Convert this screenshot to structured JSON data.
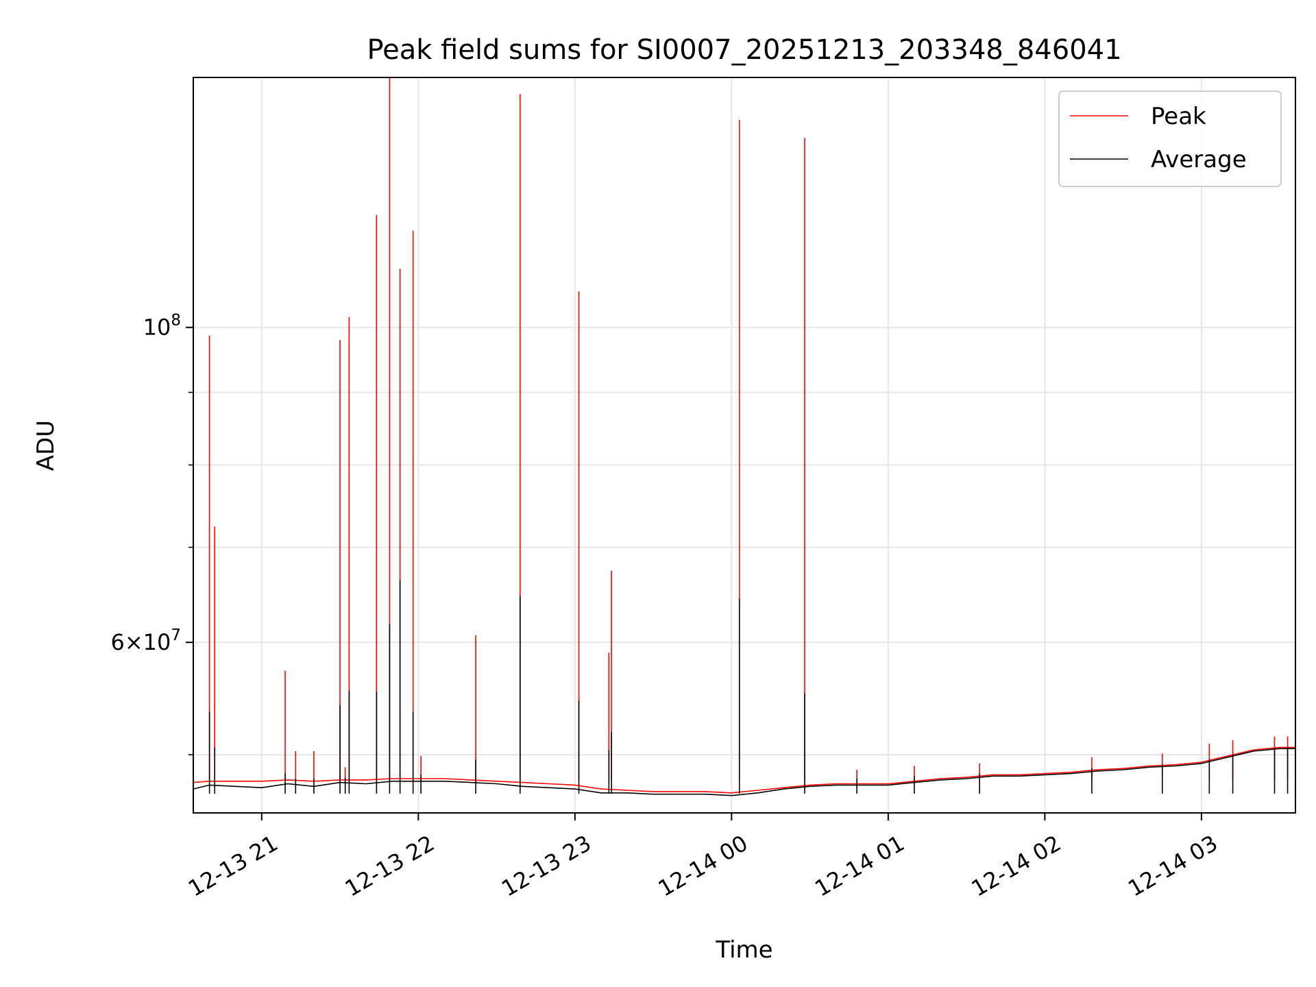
{
  "chart_data": {
    "type": "line",
    "title": "Peak field sums for SI0007_20251213_203348_846041",
    "xlabel": "Time",
    "ylabel": "ADU",
    "y_scale": "log",
    "ylim": [
      45500000,
      150000000
    ],
    "xlim": [
      "2025-12-13T20:33:48",
      "2025-12-14T03:36:00"
    ],
    "grid": true,
    "legend_position": "top-right",
    "x_ticks": [
      {
        "value": "2025-12-13T21:00:00",
        "label": "12-13 21"
      },
      {
        "value": "2025-12-13T22:00:00",
        "label": "12-13 22"
      },
      {
        "value": "2025-12-13T23:00:00",
        "label": "12-13 23"
      },
      {
        "value": "2025-12-14T00:00:00",
        "label": "12-14 00"
      },
      {
        "value": "2025-12-14T01:00:00",
        "label": "12-14 01"
      },
      {
        "value": "2025-12-14T02:00:00",
        "label": "12-14 02"
      },
      {
        "value": "2025-12-14T03:00:00",
        "label": "12-14 03"
      }
    ],
    "y_ticks": [
      {
        "value": 100000000,
        "base": "10",
        "exp": "8",
        "mant": ""
      },
      {
        "value": 60000000,
        "base": "10",
        "exp": "7",
        "mant": "6×"
      }
    ],
    "series": [
      {
        "name": "Peak",
        "color": "#ff0000",
        "x": [
          "2025-12-13T20:33:48",
          "2025-12-13T20:40:00",
          "2025-12-13T20:50:00",
          "2025-12-13T21:00:00",
          "2025-12-13T21:10:00",
          "2025-12-13T21:20:00",
          "2025-12-13T21:30:00",
          "2025-12-13T21:40:00",
          "2025-12-13T21:50:00",
          "2025-12-13T22:00:00",
          "2025-12-13T22:10:00",
          "2025-12-13T22:20:00",
          "2025-12-13T22:30:00",
          "2025-12-13T22:40:00",
          "2025-12-13T22:50:00",
          "2025-12-13T23:00:00",
          "2025-12-13T23:10:00",
          "2025-12-13T23:20:00",
          "2025-12-13T23:30:00",
          "2025-12-13T23:40:00",
          "2025-12-13T23:50:00",
          "2025-12-14T00:00:00",
          "2025-12-14T00:10:00",
          "2025-12-14T00:20:00",
          "2025-12-14T00:30:00",
          "2025-12-14T00:40:00",
          "2025-12-14T00:50:00",
          "2025-12-14T01:00:00",
          "2025-12-14T01:10:00",
          "2025-12-14T01:20:00",
          "2025-12-14T01:30:00",
          "2025-12-14T01:40:00",
          "2025-12-14T01:50:00",
          "2025-12-14T02:00:00",
          "2025-12-14T02:10:00",
          "2025-12-14T02:20:00",
          "2025-12-14T02:30:00",
          "2025-12-14T02:40:00",
          "2025-12-14T02:50:00",
          "2025-12-14T03:00:00",
          "2025-12-14T03:10:00",
          "2025-12-14T03:20:00",
          "2025-12-14T03:30:00",
          "2025-12-14T03:36:00"
        ],
        "values": [
          47800000,
          47900000,
          47900000,
          47900000,
          48000000,
          47900000,
          48000000,
          48000000,
          48100000,
          48100000,
          48100000,
          48000000,
          47900000,
          47800000,
          47700000,
          47600000,
          47300000,
          47200000,
          47100000,
          47100000,
          47100000,
          47000000,
          47200000,
          47400000,
          47600000,
          47700000,
          47700000,
          47700000,
          47900000,
          48100000,
          48200000,
          48400000,
          48400000,
          48500000,
          48600000,
          48800000,
          48900000,
          49100000,
          49200000,
          49400000,
          49900000,
          50400000,
          50600000,
          50600000
        ]
      },
      {
        "name": "Average",
        "color": "#000000",
        "x": [
          "2025-12-13T20:33:48",
          "2025-12-13T20:40:00",
          "2025-12-13T20:50:00",
          "2025-12-13T21:00:00",
          "2025-12-13T21:10:00",
          "2025-12-13T21:20:00",
          "2025-12-13T21:30:00",
          "2025-12-13T21:40:00",
          "2025-12-13T21:50:00",
          "2025-12-13T22:00:00",
          "2025-12-13T22:10:00",
          "2025-12-13T22:20:00",
          "2025-12-13T22:30:00",
          "2025-12-13T22:40:00",
          "2025-12-13T22:50:00",
          "2025-12-13T23:00:00",
          "2025-12-13T23:10:00",
          "2025-12-13T23:20:00",
          "2025-12-13T23:30:00",
          "2025-12-13T23:40:00",
          "2025-12-13T23:50:00",
          "2025-12-14T00:00:00",
          "2025-12-14T00:10:00",
          "2025-12-14T00:20:00",
          "2025-12-14T00:30:00",
          "2025-12-14T00:40:00",
          "2025-12-14T00:50:00",
          "2025-12-14T01:00:00",
          "2025-12-14T01:10:00",
          "2025-12-14T01:20:00",
          "2025-12-14T01:30:00",
          "2025-12-14T01:40:00",
          "2025-12-14T01:50:00",
          "2025-12-14T02:00:00",
          "2025-12-14T02:10:00",
          "2025-12-14T02:20:00",
          "2025-12-14T02:30:00",
          "2025-12-14T02:40:00",
          "2025-12-14T02:50:00",
          "2025-12-14T03:00:00",
          "2025-12-14T03:10:00",
          "2025-12-14T03:20:00",
          "2025-12-14T03:30:00",
          "2025-12-14T03:36:00"
        ],
        "values": [
          47300000,
          47600000,
          47500000,
          47400000,
          47700000,
          47500000,
          47800000,
          47700000,
          47900000,
          47900000,
          47900000,
          47800000,
          47700000,
          47500000,
          47400000,
          47300000,
          47000000,
          47000000,
          46900000,
          46900000,
          46900000,
          46800000,
          47000000,
          47300000,
          47500000,
          47600000,
          47600000,
          47600000,
          47800000,
          48000000,
          48100000,
          48300000,
          48300000,
          48400000,
          48500000,
          48700000,
          48800000,
          49000000,
          49100000,
          49300000,
          49800000,
          50300000,
          50500000,
          50500000
        ]
      }
    ],
    "spikes": [
      {
        "x": "2025-12-13T20:40:00",
        "peak": 98700000,
        "average": 53600000
      },
      {
        "x": "2025-12-13T20:42:00",
        "peak": 72400000,
        "average": 50600000
      },
      {
        "x": "2025-12-13T21:09:00",
        "peak": 57300000,
        "average": 48500000
      },
      {
        "x": "2025-12-13T21:13:00",
        "peak": 50300000,
        "average": 48100000
      },
      {
        "x": "2025-12-13T21:20:00",
        "peak": 50300000,
        "average": 48100000
      },
      {
        "x": "2025-12-13T21:30:00",
        "peak": 98000000,
        "average": 54200000
      },
      {
        "x": "2025-12-13T21:32:00",
        "peak": 49000000,
        "average": 48200000
      },
      {
        "x": "2025-12-13T21:33:30",
        "peak": 101700000,
        "average": 55500000
      },
      {
        "x": "2025-12-13T21:44:00",
        "peak": 120000000,
        "average": 55400000
      },
      {
        "x": "2025-12-13T21:49:00",
        "peak": 150000000,
        "average": 61800000
      },
      {
        "x": "2025-12-13T21:53:00",
        "peak": 110000000,
        "average": 66400000
      },
      {
        "x": "2025-12-13T21:58:00",
        "peak": 117000000,
        "average": 53600000
      },
      {
        "x": "2025-12-13T22:01:00",
        "peak": 49900000,
        "average": 48400000
      },
      {
        "x": "2025-12-13T22:22:00",
        "peak": 60700000,
        "average": 49600000
      },
      {
        "x": "2025-12-13T22:39:00",
        "peak": 146000000,
        "average": 64700000
      },
      {
        "x": "2025-12-13T23:01:30",
        "peak": 106000000,
        "average": 54600000
      },
      {
        "x": "2025-12-13T23:13:00",
        "peak": 59000000,
        "average": 50400000
      },
      {
        "x": "2025-12-13T23:14:00",
        "peak": 67400000,
        "average": 51900000
      },
      {
        "x": "2025-12-14T00:03:00",
        "peak": 140000000,
        "average": 64400000
      },
      {
        "x": "2025-12-14T00:28:00",
        "peak": 136000000,
        "average": 55200000
      },
      {
        "x": "2025-12-14T00:48:00",
        "peak": 48800000,
        "average": 48100000
      },
      {
        "x": "2025-12-14T01:10:00",
        "peak": 49100000,
        "average": 48300000
      },
      {
        "x": "2025-12-14T01:35:00",
        "peak": 49300000,
        "average": 48500000
      },
      {
        "x": "2025-12-14T02:18:00",
        "peak": 49800000,
        "average": 48900000
      },
      {
        "x": "2025-12-14T02:45:00",
        "peak": 50100000,
        "average": 49200000
      },
      {
        "x": "2025-12-14T03:03:00",
        "peak": 50900000,
        "average": 49600000
      },
      {
        "x": "2025-12-14T03:12:00",
        "peak": 51200000,
        "average": 50000000
      },
      {
        "x": "2025-12-14T03:28:00",
        "peak": 51500000,
        "average": 50500000
      },
      {
        "x": "2025-12-14T03:33:00",
        "peak": 51500000,
        "average": 50600000
      }
    ]
  }
}
